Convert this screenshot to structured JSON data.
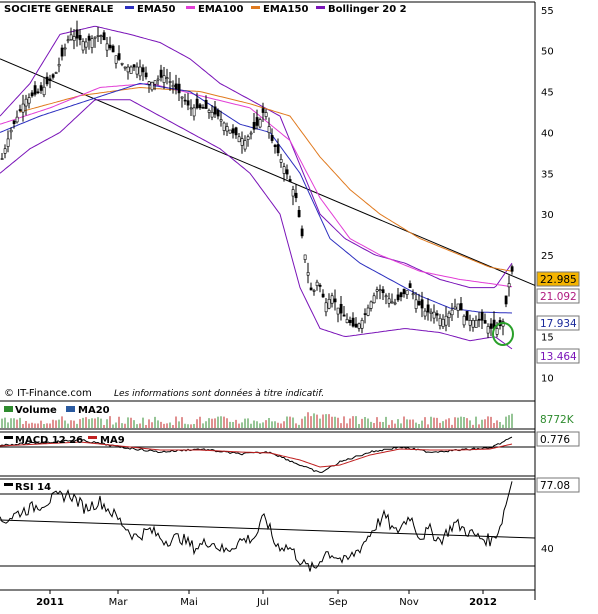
{
  "chart_data": [
    {
      "type": "candlestick",
      "title": "SOCIETE GENERALE",
      "legend": [
        {
          "label": "EMA50",
          "color": "#2c2fbf"
        },
        {
          "label": "EMA100",
          "color": "#e23ed6"
        },
        {
          "label": "EMA150",
          "color": "#e07a1f"
        },
        {
          "label": "Bollinger 20 2",
          "color": "#7a14b8"
        }
      ],
      "ylim": [
        10,
        56
      ],
      "y_ticks": [
        10,
        15,
        20,
        25,
        30,
        35,
        40,
        45,
        50,
        55
      ],
      "x_ticks": [
        "2011",
        "Mar",
        "Mai",
        "Jul",
        "Sep",
        "Nov",
        "2012"
      ],
      "last_values": [
        {
          "label": "22.985",
          "value": 22.985,
          "color": "#000000",
          "bg": "#f5b400"
        },
        {
          "label": "21.092",
          "value": 21.092,
          "color": "#b01a80",
          "bg": "#ffffff"
        },
        {
          "label": "17.934",
          "value": 17.934,
          "color": "#1a2a9a",
          "bg": "#ffffff"
        },
        {
          "label": "13.464",
          "value": 13.464,
          "color": "#7a14b8",
          "bg": "#ffffff"
        }
      ],
      "close_keypoints": [
        [
          0,
          36
        ],
        [
          10,
          40
        ],
        [
          25,
          44
        ],
        [
          40,
          45
        ],
        [
          55,
          47
        ],
        [
          70,
          52
        ],
        [
          85,
          51
        ],
        [
          100,
          52
        ],
        [
          112,
          50
        ],
        [
          125,
          48
        ],
        [
          140,
          48
        ],
        [
          150,
          46
        ],
        [
          165,
          47
        ],
        [
          178,
          45
        ],
        [
          190,
          43
        ],
        [
          205,
          43
        ],
        [
          218,
          42
        ],
        [
          232,
          40
        ],
        [
          245,
          39
        ],
        [
          258,
          41
        ],
        [
          265,
          43
        ],
        [
          272,
          39
        ],
        [
          280,
          37
        ],
        [
          290,
          34
        ],
        [
          296,
          32
        ],
        [
          305,
          25
        ],
        [
          312,
          20
        ],
        [
          318,
          22
        ],
        [
          325,
          19
        ],
        [
          332,
          20
        ],
        [
          340,
          18
        ],
        [
          348,
          17
        ],
        [
          355,
          16
        ],
        [
          362,
          17
        ],
        [
          370,
          19
        ],
        [
          378,
          21
        ],
        [
          386,
          20
        ],
        [
          394,
          19
        ],
        [
          402,
          20
        ],
        [
          410,
          21
        ],
        [
          418,
          19
        ],
        [
          426,
          18
        ],
        [
          434,
          18
        ],
        [
          442,
          17
        ],
        [
          450,
          18
        ],
        [
          458,
          19
        ],
        [
          466,
          17
        ],
        [
          474,
          17
        ],
        [
          482,
          17
        ],
        [
          490,
          16
        ],
        [
          498,
          16
        ],
        [
          504,
          17
        ],
        [
          508,
          21
        ],
        [
          512,
          23
        ]
      ],
      "ema50_keypoints": [
        [
          0,
          40
        ],
        [
          40,
          42
        ],
        [
          90,
          44
        ],
        [
          140,
          46
        ],
        [
          190,
          45
        ],
        [
          240,
          41
        ],
        [
          270,
          40
        ],
        [
          300,
          35
        ],
        [
          330,
          27
        ],
        [
          360,
          24
        ],
        [
          390,
          22
        ],
        [
          420,
          20
        ],
        [
          450,
          18.5
        ],
        [
          480,
          18
        ],
        [
          512,
          17.9
        ]
      ],
      "ema100_keypoints": [
        [
          0,
          41
        ],
        [
          50,
          43
        ],
        [
          100,
          45.5
        ],
        [
          150,
          46
        ],
        [
          200,
          44.5
        ],
        [
          250,
          43
        ],
        [
          290,
          39
        ],
        [
          320,
          32
        ],
        [
          350,
          27
        ],
        [
          380,
          25
        ],
        [
          420,
          23
        ],
        [
          460,
          22
        ],
        [
          490,
          21.5
        ],
        [
          512,
          21.1
        ]
      ],
      "ema150_keypoints": [
        [
          20,
          42.5
        ],
        [
          80,
          44.5
        ],
        [
          140,
          45.5
        ],
        [
          200,
          45
        ],
        [
          250,
          43.5
        ],
        [
          290,
          42
        ],
        [
          320,
          37
        ],
        [
          350,
          33
        ],
        [
          380,
          30
        ],
        [
          420,
          27
        ],
        [
          460,
          25
        ],
        [
          490,
          23.5
        ],
        [
          512,
          23
        ]
      ],
      "boll_upper_keypoints": [
        [
          0,
          42
        ],
        [
          30,
          46
        ],
        [
          60,
          52
        ],
        [
          95,
          53
        ],
        [
          130,
          52
        ],
        [
          160,
          51
        ],
        [
          190,
          49
        ],
        [
          220,
          46
        ],
        [
          250,
          44
        ],
        [
          280,
          42
        ],
        [
          300,
          36
        ],
        [
          320,
          30
        ],
        [
          345,
          27
        ],
        [
          375,
          25
        ],
        [
          405,
          24
        ],
        [
          440,
          22
        ],
        [
          470,
          21
        ],
        [
          495,
          21
        ],
        [
          512,
          24
        ]
      ],
      "boll_lower_keypoints": [
        [
          0,
          35
        ],
        [
          30,
          38
        ],
        [
          60,
          40
        ],
        [
          95,
          44
        ],
        [
          130,
          44
        ],
        [
          160,
          42
        ],
        [
          190,
          40
        ],
        [
          220,
          38
        ],
        [
          250,
          35
        ],
        [
          280,
          30
        ],
        [
          300,
          21
        ],
        [
          320,
          16
        ],
        [
          345,
          15
        ],
        [
          375,
          15.5
        ],
        [
          405,
          16
        ],
        [
          440,
          15.5
        ],
        [
          470,
          14.5
        ],
        [
          495,
          15
        ],
        [
          512,
          13.5
        ]
      ],
      "trendline": [
        [
          0,
          49
        ],
        [
          598,
          18
        ]
      ]
    },
    {
      "type": "bar",
      "title": "Volume",
      "legend": [
        {
          "label": "Volume",
          "color": "#2e8b2e"
        },
        {
          "label": "MA20",
          "color": "#2a5aa0"
        }
      ],
      "last_value": {
        "label": "8772K",
        "color": "#2e8b2e"
      }
    },
    {
      "type": "line",
      "title": "MACD 12 26",
      "legend": [
        {
          "label": "MACD 12 26",
          "color": "#000000"
        },
        {
          "label": "MA9",
          "color": "#c02020"
        }
      ],
      "last_value": {
        "label": "0.776",
        "color": "#000000"
      }
    },
    {
      "type": "line",
      "title": "RSI 14",
      "ylim": [
        20,
        85
      ],
      "y_ticks": [
        40
      ],
      "reference_lines": [
        70,
        30
      ],
      "last_value": {
        "label": "77.08",
        "color": "#000000"
      },
      "rsi_keypoints": [
        [
          0,
          54
        ],
        [
          20,
          60
        ],
        [
          40,
          64
        ],
        [
          55,
          68
        ],
        [
          70,
          70
        ],
        [
          85,
          62
        ],
        [
          100,
          66
        ],
        [
          115,
          58
        ],
        [
          125,
          52
        ],
        [
          135,
          46
        ],
        [
          150,
          50
        ],
        [
          165,
          44
        ],
        [
          180,
          46
        ],
        [
          195,
          40
        ],
        [
          210,
          44
        ],
        [
          225,
          38
        ],
        [
          240,
          44
        ],
        [
          255,
          46
        ],
        [
          265,
          58
        ],
        [
          275,
          42
        ],
        [
          290,
          40
        ],
        [
          305,
          30
        ],
        [
          315,
          28
        ],
        [
          325,
          38
        ],
        [
          335,
          36
        ],
        [
          345,
          32
        ],
        [
          360,
          40
        ],
        [
          375,
          52
        ],
        [
          385,
          58
        ],
        [
          395,
          48
        ],
        [
          410,
          58
        ],
        [
          420,
          46
        ],
        [
          430,
          50
        ],
        [
          440,
          44
        ],
        [
          455,
          54
        ],
        [
          465,
          50
        ],
        [
          478,
          46
        ],
        [
          492,
          44
        ],
        [
          500,
          52
        ],
        [
          506,
          64
        ],
        [
          512,
          77
        ]
      ]
    }
  ],
  "footer": {
    "copyright": "© IT-Finance.com",
    "disclaimer": "Les informations sont données à titre indicatif."
  }
}
